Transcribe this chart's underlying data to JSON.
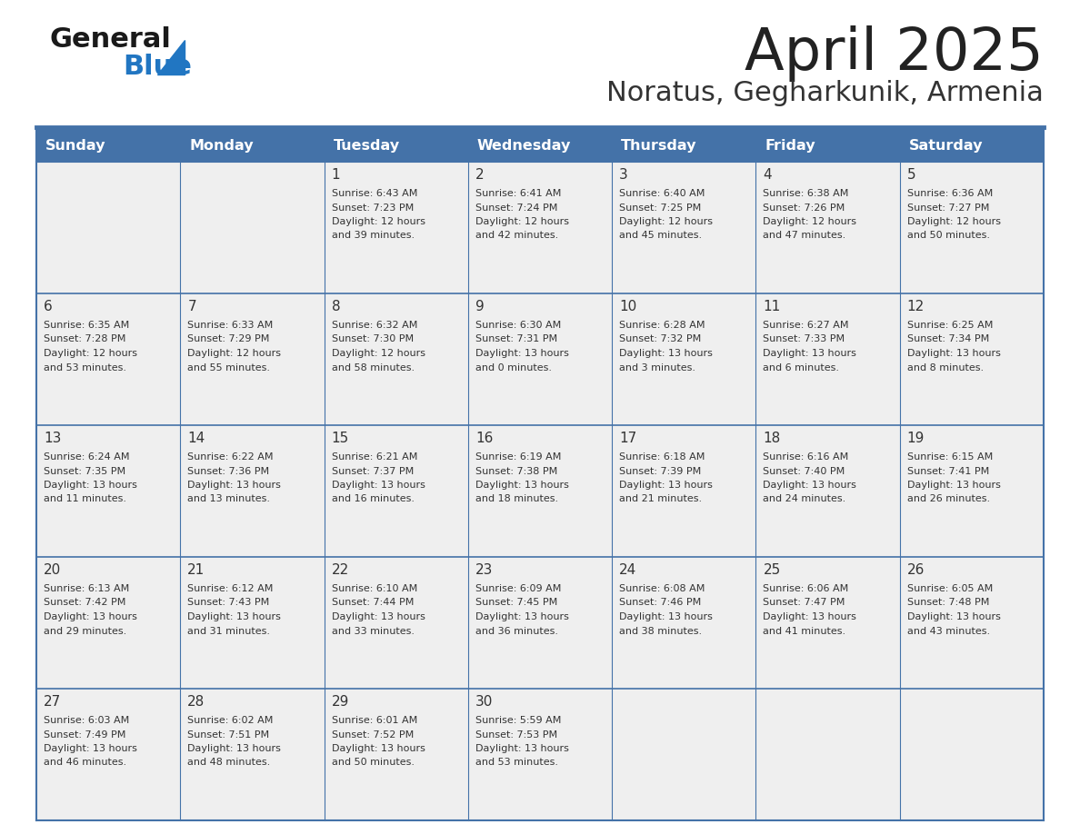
{
  "title": "April 2025",
  "subtitle": "Noratus, Gegharkunik, Armenia",
  "days_of_week": [
    "Sunday",
    "Monday",
    "Tuesday",
    "Wednesday",
    "Thursday",
    "Friday",
    "Saturday"
  ],
  "header_bg": "#4472A8",
  "header_text_color": "#FFFFFF",
  "cell_bg": "#EFEFEF",
  "line_color": "#4472A8",
  "title_color": "#222222",
  "subtitle_color": "#333333",
  "text_color": "#333333",
  "logo_general_color": "#1a1a1a",
  "logo_blue_color": "#2176C2",
  "calendar": [
    [
      {
        "day": "",
        "sunrise": "",
        "sunset": "",
        "daylight": ""
      },
      {
        "day": "",
        "sunrise": "",
        "sunset": "",
        "daylight": ""
      },
      {
        "day": "1",
        "sunrise": "6:43 AM",
        "sunset": "7:23 PM",
        "daylight": "12 hours and 39 minutes."
      },
      {
        "day": "2",
        "sunrise": "6:41 AM",
        "sunset": "7:24 PM",
        "daylight": "12 hours and 42 minutes."
      },
      {
        "day": "3",
        "sunrise": "6:40 AM",
        "sunset": "7:25 PM",
        "daylight": "12 hours and 45 minutes."
      },
      {
        "day": "4",
        "sunrise": "6:38 AM",
        "sunset": "7:26 PM",
        "daylight": "12 hours and 47 minutes."
      },
      {
        "day": "5",
        "sunrise": "6:36 AM",
        "sunset": "7:27 PM",
        "daylight": "12 hours and 50 minutes."
      }
    ],
    [
      {
        "day": "6",
        "sunrise": "6:35 AM",
        "sunset": "7:28 PM",
        "daylight": "12 hours and 53 minutes."
      },
      {
        "day": "7",
        "sunrise": "6:33 AM",
        "sunset": "7:29 PM",
        "daylight": "12 hours and 55 minutes."
      },
      {
        "day": "8",
        "sunrise": "6:32 AM",
        "sunset": "7:30 PM",
        "daylight": "12 hours and 58 minutes."
      },
      {
        "day": "9",
        "sunrise": "6:30 AM",
        "sunset": "7:31 PM",
        "daylight": "13 hours and 0 minutes."
      },
      {
        "day": "10",
        "sunrise": "6:28 AM",
        "sunset": "7:32 PM",
        "daylight": "13 hours and 3 minutes."
      },
      {
        "day": "11",
        "sunrise": "6:27 AM",
        "sunset": "7:33 PM",
        "daylight": "13 hours and 6 minutes."
      },
      {
        "day": "12",
        "sunrise": "6:25 AM",
        "sunset": "7:34 PM",
        "daylight": "13 hours and 8 minutes."
      }
    ],
    [
      {
        "day": "13",
        "sunrise": "6:24 AM",
        "sunset": "7:35 PM",
        "daylight": "13 hours and 11 minutes."
      },
      {
        "day": "14",
        "sunrise": "6:22 AM",
        "sunset": "7:36 PM",
        "daylight": "13 hours and 13 minutes."
      },
      {
        "day": "15",
        "sunrise": "6:21 AM",
        "sunset": "7:37 PM",
        "daylight": "13 hours and 16 minutes."
      },
      {
        "day": "16",
        "sunrise": "6:19 AM",
        "sunset": "7:38 PM",
        "daylight": "13 hours and 18 minutes."
      },
      {
        "day": "17",
        "sunrise": "6:18 AM",
        "sunset": "7:39 PM",
        "daylight": "13 hours and 21 minutes."
      },
      {
        "day": "18",
        "sunrise": "6:16 AM",
        "sunset": "7:40 PM",
        "daylight": "13 hours and 24 minutes."
      },
      {
        "day": "19",
        "sunrise": "6:15 AM",
        "sunset": "7:41 PM",
        "daylight": "13 hours and 26 minutes."
      }
    ],
    [
      {
        "day": "20",
        "sunrise": "6:13 AM",
        "sunset": "7:42 PM",
        "daylight": "13 hours and 29 minutes."
      },
      {
        "day": "21",
        "sunrise": "6:12 AM",
        "sunset": "7:43 PM",
        "daylight": "13 hours and 31 minutes."
      },
      {
        "day": "22",
        "sunrise": "6:10 AM",
        "sunset": "7:44 PM",
        "daylight": "13 hours and 33 minutes."
      },
      {
        "day": "23",
        "sunrise": "6:09 AM",
        "sunset": "7:45 PM",
        "daylight": "13 hours and 36 minutes."
      },
      {
        "day": "24",
        "sunrise": "6:08 AM",
        "sunset": "7:46 PM",
        "daylight": "13 hours and 38 minutes."
      },
      {
        "day": "25",
        "sunrise": "6:06 AM",
        "sunset": "7:47 PM",
        "daylight": "13 hours and 41 minutes."
      },
      {
        "day": "26",
        "sunrise": "6:05 AM",
        "sunset": "7:48 PM",
        "daylight": "13 hours and 43 minutes."
      }
    ],
    [
      {
        "day": "27",
        "sunrise": "6:03 AM",
        "sunset": "7:49 PM",
        "daylight": "13 hours and 46 minutes."
      },
      {
        "day": "28",
        "sunrise": "6:02 AM",
        "sunset": "7:51 PM",
        "daylight": "13 hours and 48 minutes."
      },
      {
        "day": "29",
        "sunrise": "6:01 AM",
        "sunset": "7:52 PM",
        "daylight": "13 hours and 50 minutes."
      },
      {
        "day": "30",
        "sunrise": "5:59 AM",
        "sunset": "7:53 PM",
        "daylight": "13 hours and 53 minutes."
      },
      {
        "day": "",
        "sunrise": "",
        "sunset": "",
        "daylight": ""
      },
      {
        "day": "",
        "sunrise": "",
        "sunset": "",
        "daylight": ""
      },
      {
        "day": "",
        "sunrise": "",
        "sunset": "",
        "daylight": ""
      }
    ]
  ]
}
